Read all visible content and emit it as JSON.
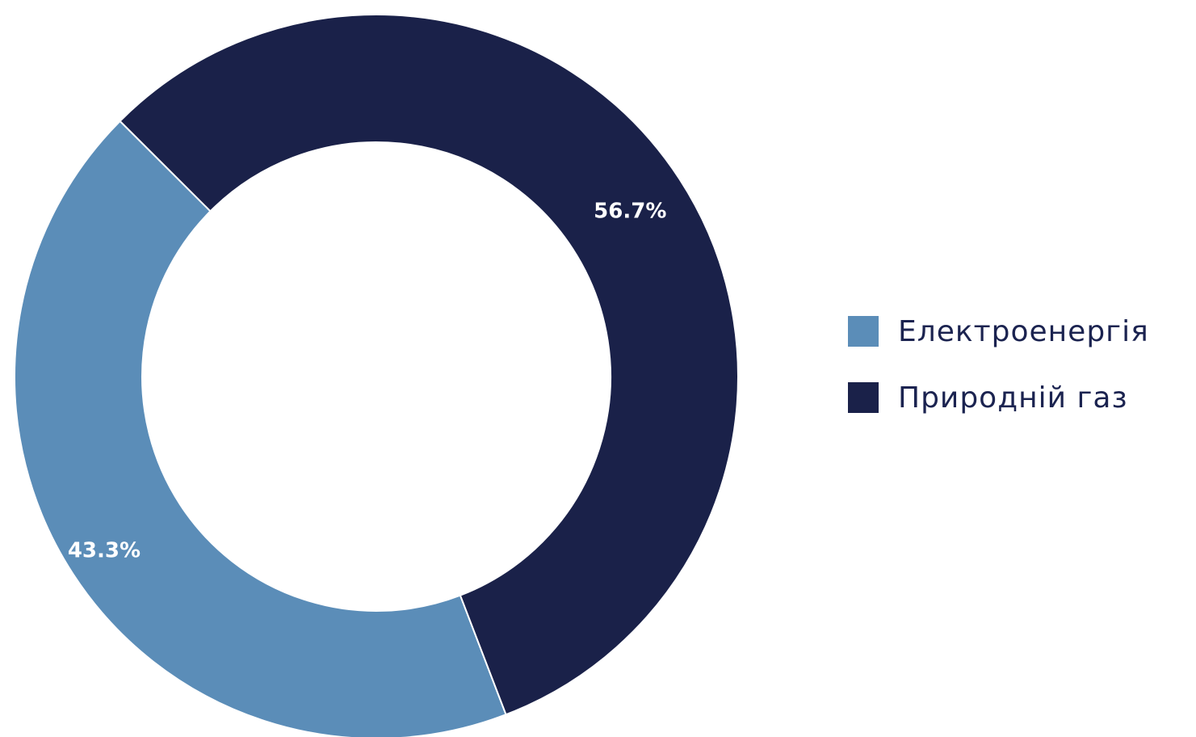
{
  "chart_data": {
    "type": "pie",
    "donut": true,
    "categories": [
      "Електроенергія",
      "Природній газ"
    ],
    "values": [
      43.3,
      56.7
    ],
    "value_labels": [
      "43.3%",
      "56.7%"
    ],
    "colors": [
      "#5b8db8",
      "#1a2149"
    ],
    "title": "",
    "legend_position": "right"
  }
}
